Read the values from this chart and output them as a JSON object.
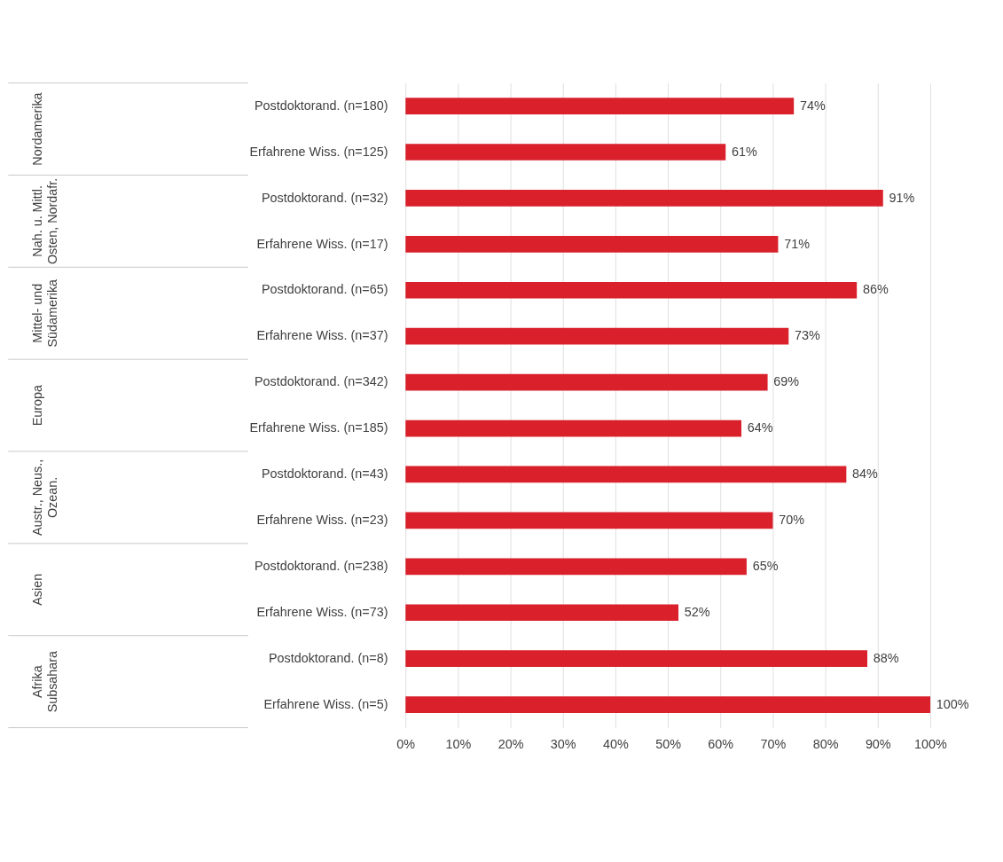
{
  "chart_data": {
    "type": "bar",
    "orientation": "horizontal",
    "categories": [
      "Postdoktorand. (n=180)",
      "Erfahrene Wiss. (n=125)",
      "Postdoktorand. (n=32)",
      "Erfahrene Wiss. (n=17)",
      "Postdoktorand. (n=65)",
      "Erfahrene Wiss. (n=37)",
      "Postdoktorand. (n=342)",
      "Erfahrene Wiss. (n=185)",
      "Postdoktorand. (n=43)",
      "Erfahrene Wiss. (n=23)",
      "Postdoktorand. (n=238)",
      "Erfahrene Wiss. (n=73)",
      "Postdoktorand. (n=8)",
      "Erfahrene Wiss. (n=5)"
    ],
    "values": [
      74,
      61,
      91,
      71,
      86,
      73,
      69,
      64,
      84,
      70,
      65,
      52,
      88,
      100
    ],
    "value_labels": [
      "74%",
      "61%",
      "91%",
      "71%",
      "86%",
      "73%",
      "69%",
      "64%",
      "84%",
      "70%",
      "65%",
      "52%",
      "88%",
      "100%"
    ],
    "color": "#d9202b",
    "annotations": [
      "Nordamerika",
      "Nah. u. Mittl.\nOsten, Nordafr.",
      "Mittel- und\nSüdamerika",
      "Europa",
      "Austr., Neus.,\nOzean.",
      "Asien",
      "Afrika\nSubsahara"
    ],
    "xlim": [
      0,
      100
    ],
    "xticks": [
      {
        "value": 0,
        "label": "0%"
      },
      {
        "value": 10,
        "label": "10%"
      },
      {
        "value": 20,
        "label": "20%"
      },
      {
        "value": 30,
        "label": "30%"
      },
      {
        "value": 40,
        "label": "40%"
      },
      {
        "value": 50,
        "label": "50%"
      },
      {
        "value": 60,
        "label": "60%"
      },
      {
        "value": 70,
        "label": "70%"
      },
      {
        "value": 80,
        "label": "80%"
      },
      {
        "value": 90,
        "label": "90%"
      },
      {
        "value": 100,
        "label": "100%"
      }
    ],
    "grid": "x",
    "legend": false
  }
}
